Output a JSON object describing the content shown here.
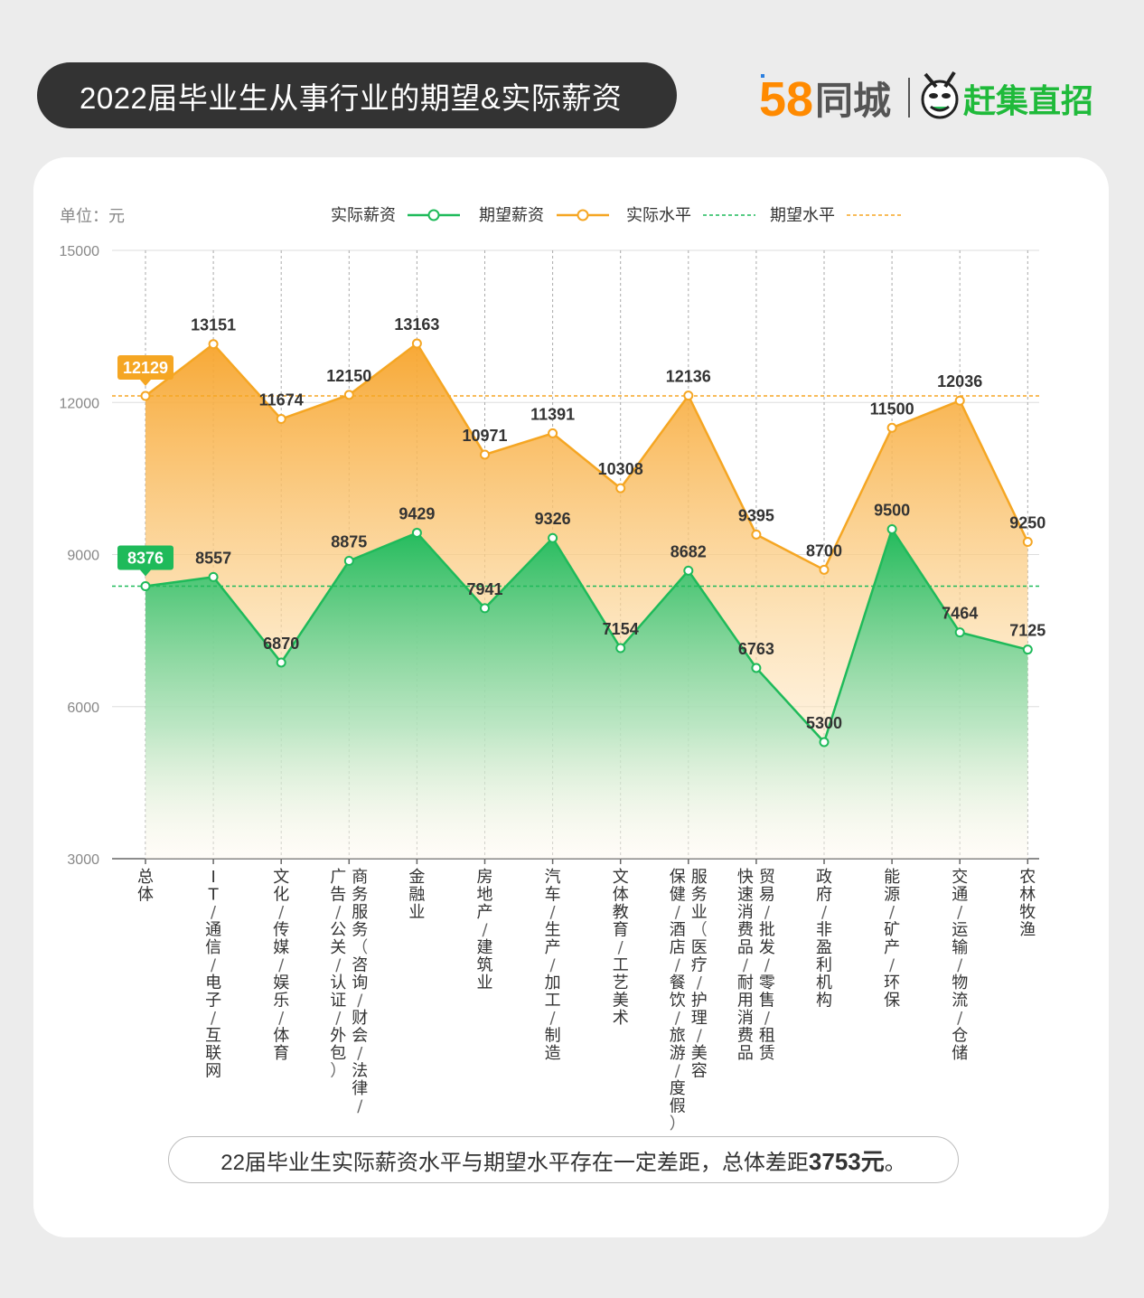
{
  "header": {
    "title": "2022届毕业生从事行业的期望&实际薪资",
    "logo_58_text": "58",
    "logo_tongcheng": "同城",
    "logo_ganji": "赶集直招"
  },
  "chart_data": {
    "type": "line",
    "unit_label": "单位：元",
    "y_ticks": [
      15000,
      12000,
      9000,
      6000,
      3000
    ],
    "ylim": [
      3000,
      15000
    ],
    "grid": true,
    "legend_position": "top-center",
    "legend": {
      "actual": "实际薪资",
      "expected": "期望薪资",
      "actual_level": "实际水平",
      "expected_level": "期望水平"
    },
    "categories": [
      "总体",
      "IT/通信/电子/互联网",
      "文化/传媒/娱乐/体育",
      "商务服务（咨询/财会/法律/广告/公关/认证/外包）",
      "金融业",
      "房地产/建筑业",
      "汽车/生产/加工/制造",
      "文体教育/工艺美术",
      "服务业（医疗/护理/美容保健/酒店/餐饮/旅游/度假）",
      "贸易/批发/零售/租赁快速消费品/耐用消费品",
      "政府/非盈利机构",
      "能源/矿产/环保",
      "交通/运输/物流/仓储",
      "农林牧渔"
    ],
    "category_lines": [
      [
        "总体"
      ],
      [
        "IT/通信/电子/互联网"
      ],
      [
        "文化/传媒/娱乐/体育"
      ],
      [
        "商务服务（咨询/财会/法律/",
        "广告/公关/认证/外包）"
      ],
      [
        "金融业"
      ],
      [
        "房地产/建筑业"
      ],
      [
        "汽车/生产/加工/制造"
      ],
      [
        "文体教育/工艺美术"
      ],
      [
        "服务业（医疗/护理/美容",
        "保健/酒店/餐饮/旅游/度假）"
      ],
      [
        "贸易/批发/零售/租赁",
        "快速消费品/耐用消费品"
      ],
      [
        "政府/非盈利机构"
      ],
      [
        "能源/矿产/环保"
      ],
      [
        "交通/运输/物流/仓储"
      ],
      [
        "农林牧渔"
      ]
    ],
    "series": [
      {
        "name": "期望薪资",
        "color": "#f5a623",
        "values": [
          12129,
          13151,
          11674,
          12150,
          13163,
          10971,
          11391,
          10308,
          12136,
          9395,
          8700,
          11500,
          12036,
          9250
        ]
      },
      {
        "name": "实际薪资",
        "color": "#1fba5a",
        "values": [
          8376,
          8557,
          6870,
          8875,
          9429,
          7941,
          9326,
          7154,
          8682,
          6763,
          5300,
          9500,
          7464,
          7125
        ]
      }
    ],
    "reference_lines": [
      {
        "name": "期望水平",
        "value": 12129,
        "color": "#f5a623"
      },
      {
        "name": "实际水平",
        "value": 8376,
        "color": "#1fba5a"
      }
    ]
  },
  "footer": {
    "note_prefix": "22届毕业生实际薪资水平与期望水平存在一定差距，总体差距",
    "note_value": "3753元",
    "note_suffix": "。"
  }
}
